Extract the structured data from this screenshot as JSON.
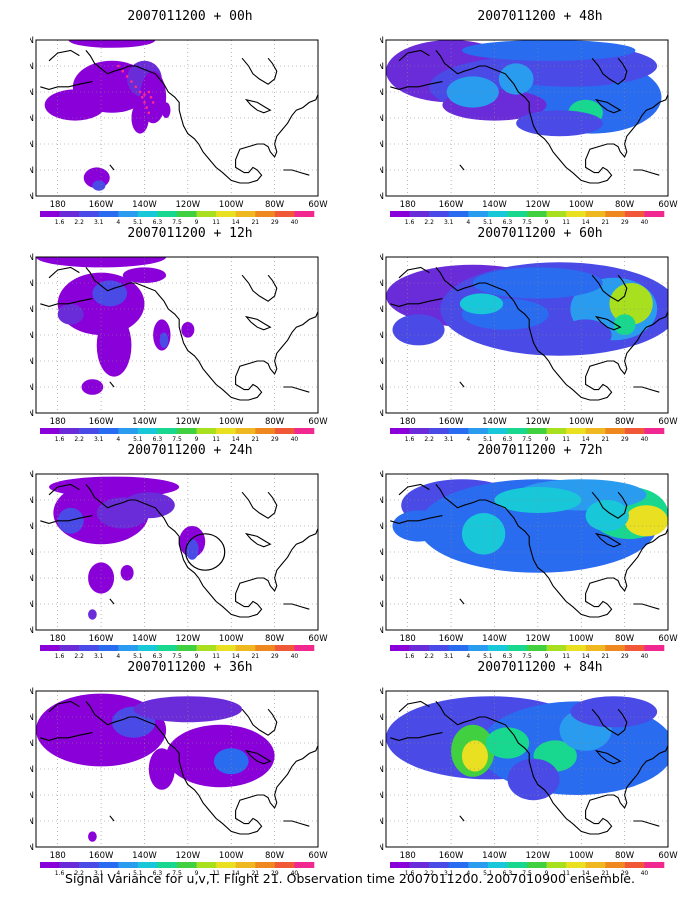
{
  "colors": {
    "scale": [
      "#8a00d8",
      "#6a2cd8",
      "#4a4ae6",
      "#2a6cf0",
      "#2a9cf0",
      "#18c8d8",
      "#18d890",
      "#40d040",
      "#a8e020",
      "#e8e020",
      "#f0b820",
      "#f08820",
      "#f05838",
      "#f02890"
    ],
    "coast": "#000000",
    "grid": "#888888",
    "marker": "#ff2d8a"
  },
  "map": {
    "lat_labels": [
      "70N",
      "60N",
      "50N",
      "40N",
      "30N",
      "20N",
      "10N"
    ],
    "lon_labels": [
      "180",
      "160W",
      "140W",
      "120W",
      "100W",
      "80W",
      "60W"
    ],
    "scale_labels": [
      "1.6",
      "2.2",
      "3.1",
      "4",
      "5.1",
      "6.3",
      "7.5",
      "9",
      "11",
      "14",
      "21",
      "29",
      "40"
    ]
  },
  "panels": [
    {
      "title": "2007011200 + 00h"
    },
    {
      "title": "2007011200 + 48h"
    },
    {
      "title": "2007011200 + 12h"
    },
    {
      "title": "2007011200 + 60h"
    },
    {
      "title": "2007011200 + 24h"
    },
    {
      "title": "2007011200 + 72h"
    },
    {
      "title": "2007011200 + 36h"
    },
    {
      "title": "2007011200 + 84h"
    }
  ],
  "caption": "Signal Variance for u,v,T. Flight 21. Observation time 2007011200. 2007010900 ensemble."
}
